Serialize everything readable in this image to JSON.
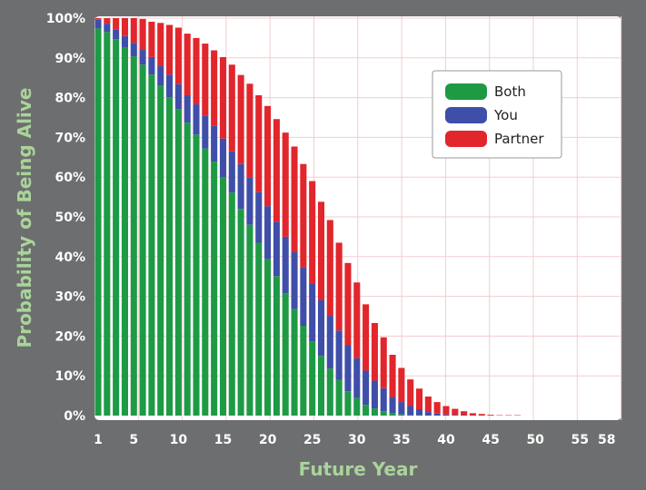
{
  "chart_data": {
    "type": "bar",
    "stacked": true,
    "title": "",
    "xlabel": "Future Year",
    "ylabel": "Probability of Being Alive",
    "x_tick_labels": [
      "1",
      "5",
      "10",
      "15",
      "20",
      "25",
      "30",
      "35",
      "40",
      "45",
      "50",
      "55",
      "58"
    ],
    "y_tick_labels": [
      "0%",
      "10%",
      "20%",
      "30%",
      "40%",
      "50%",
      "60%",
      "70%",
      "80%",
      "90%",
      "100%"
    ],
    "ylim": [
      0,
      100
    ],
    "xlim": [
      1,
      58
    ],
    "grid": true,
    "legend_position": "top-right",
    "x": [
      1,
      2,
      3,
      4,
      5,
      6,
      7,
      8,
      9,
      10,
      11,
      12,
      13,
      14,
      15,
      16,
      17,
      18,
      19,
      20,
      21,
      22,
      23,
      24,
      25,
      26,
      27,
      28,
      29,
      30,
      31,
      32,
      33,
      34,
      35,
      36,
      37,
      38,
      39,
      40,
      41,
      42,
      43,
      44,
      45,
      46,
      47,
      48,
      49,
      50,
      51,
      52,
      53,
      54,
      55,
      56,
      57,
      58
    ],
    "series": [
      {
        "name": "Both",
        "color": "#1e9a45",
        "values": [
          97.4,
          96.5,
          94.7,
          92.6,
          90.4,
          88.3,
          85.8,
          83.1,
          80.1,
          77.1,
          73.7,
          70.7,
          67.2,
          63.9,
          60.0,
          56.1,
          52.0,
          48.0,
          43.5,
          39.4,
          35.1,
          30.8,
          26.8,
          22.6,
          18.7,
          15.0,
          11.8,
          9.0,
          6.1,
          4.4,
          2.7,
          1.8,
          1.1,
          0.6,
          0.3,
          0.1,
          0.1,
          0,
          0,
          0,
          0,
          0,
          0,
          0,
          0,
          0,
          0,
          0,
          0,
          0,
          0,
          0,
          0,
          0,
          0,
          0,
          0,
          0
        ]
      },
      {
        "name": "You",
        "color": "#3f4ea8",
        "values": [
          2.2,
          2.1,
          2.5,
          2.9,
          3.4,
          3.7,
          4.4,
          5.0,
          5.7,
          6.3,
          6.9,
          7.6,
          8.3,
          9.0,
          9.7,
          10.4,
          11.3,
          11.9,
          12.7,
          13.3,
          13.7,
          14.2,
          14.3,
          14.7,
          14.5,
          14.1,
          13.3,
          12.4,
          11.7,
          10.0,
          8.6,
          7.0,
          5.8,
          4.1,
          3.1,
          2.3,
          1.5,
          0.9,
          0.5,
          0.3,
          0.2,
          0.1,
          0,
          0,
          0,
          0,
          0,
          0,
          0,
          0,
          0,
          0,
          0,
          0,
          0,
          0,
          0,
          0
        ]
      },
      {
        "name": "Partner",
        "color": "#e1262c",
        "values": [
          0.4,
          1.4,
          2.8,
          4.5,
          6.2,
          7.8,
          8.9,
          10.7,
          12.5,
          14.2,
          15.5,
          16.7,
          18.1,
          19.0,
          20.5,
          21.8,
          22.4,
          23.6,
          24.4,
          25.2,
          25.8,
          26.2,
          26.6,
          26.0,
          25.8,
          24.7,
          24.1,
          22.1,
          20.6,
          19.1,
          16.7,
          14.5,
          12.8,
          10.6,
          8.6,
          6.7,
          5.2,
          3.9,
          2.9,
          2.1,
          1.5,
          1.0,
          0.6,
          0.4,
          0.2,
          0.1,
          0.1,
          0.1,
          0,
          0,
          0,
          0,
          0,
          0,
          0,
          0,
          0,
          0
        ]
      }
    ]
  }
}
